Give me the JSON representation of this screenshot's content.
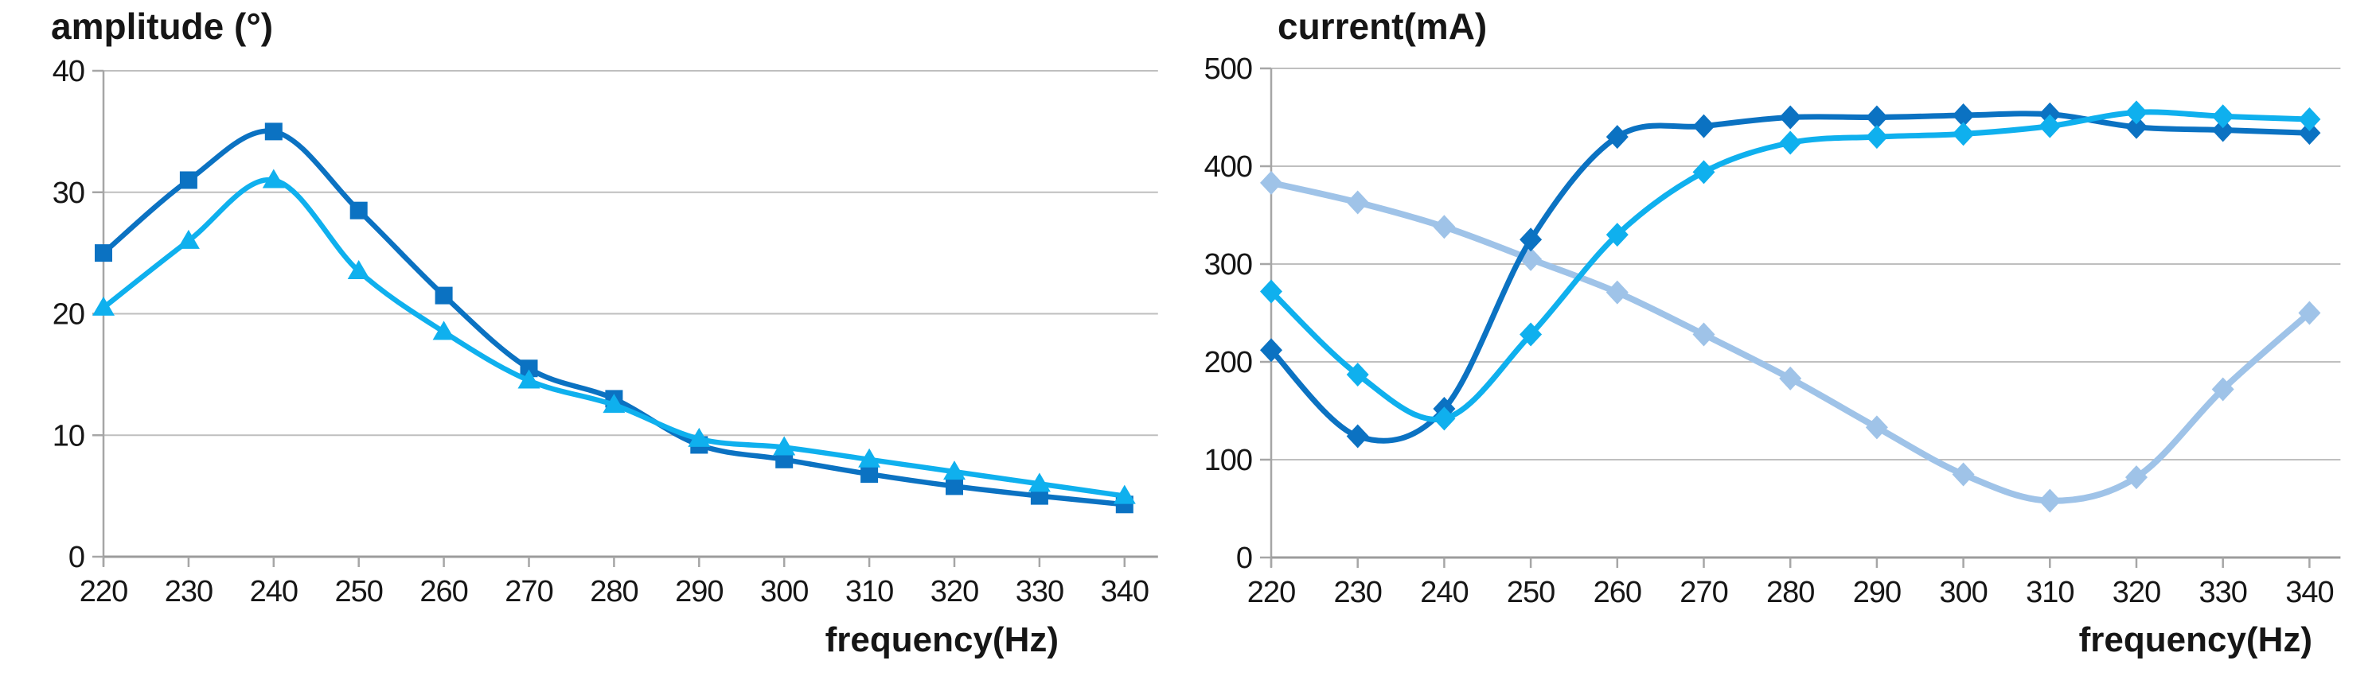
{
  "style": {
    "background": "#ffffff",
    "grid_color": "#BFBFBF",
    "axis_color": "#A6A6A6",
    "x_axis_color": "#9C9C9C",
    "text_color": "#161616",
    "dark_blue": "#0B72C2",
    "cyan_blue": "#0FB0EE",
    "pale_blue": "#9FC3E8"
  },
  "chart_data": [
    {
      "type": "line",
      "title": "amplitude (°)",
      "xlabel": "frequency(Hz)",
      "ylabel": "",
      "categories": [
        220,
        230,
        240,
        250,
        260,
        270,
        280,
        290,
        300,
        310,
        320,
        330,
        340
      ],
      "y_ticks": [
        0,
        10,
        20,
        30,
        40
      ],
      "ylim": [
        0,
        40
      ],
      "grid": "horizontal",
      "legend": "none",
      "series": [
        {
          "name": "amplitude dark blue series (square markers)",
          "marker": "square",
          "color": "#0B72C2",
          "smooth": true,
          "values": [
            25,
            31,
            35,
            28.5,
            21.5,
            15.5,
            13,
            9.2,
            8,
            6.8,
            5.8,
            5,
            4.3
          ]
        },
        {
          "name": "amplitude cyan series (triangle markers)",
          "marker": "triangle",
          "color": "#0FB0EE",
          "smooth": true,
          "values": [
            20.5,
            26,
            31,
            23.5,
            18.5,
            14.5,
            12.5,
            9.7,
            9,
            8,
            7,
            6,
            5
          ]
        }
      ]
    },
    {
      "type": "line",
      "title": "current(mA)",
      "xlabel": "frequency(Hz)",
      "ylabel": "",
      "categories": [
        220,
        230,
        240,
        250,
        260,
        270,
        280,
        290,
        300,
        310,
        320,
        330,
        340
      ],
      "y_ticks": [
        0,
        100,
        200,
        300,
        400,
        500
      ],
      "ylim": [
        0,
        500
      ],
      "grid": "horizontal",
      "legend": "none",
      "series": [
        {
          "name": "current pale blue series (diamond markers)",
          "marker": "diamond",
          "color": "#9FC3E8",
          "smooth": true,
          "values": [
            383,
            363,
            338,
            305,
            271,
            228,
            183,
            133,
            85,
            58,
            82,
            172,
            250
          ]
        },
        {
          "name": "current dark blue series (diamond markers)",
          "marker": "diamond",
          "color": "#0B72C2",
          "smooth": true,
          "values": [
            212,
            124,
            152,
            325,
            430,
            441,
            450,
            450,
            452,
            453,
            440,
            437,
            434
          ]
        },
        {
          "name": "current cyan series (diamond markers)",
          "marker": "diamond",
          "color": "#0FB0EE",
          "smooth": true,
          "values": [
            272,
            187,
            142,
            228,
            330,
            394,
            424,
            430,
            433,
            441,
            455,
            451,
            448
          ]
        }
      ]
    }
  ]
}
